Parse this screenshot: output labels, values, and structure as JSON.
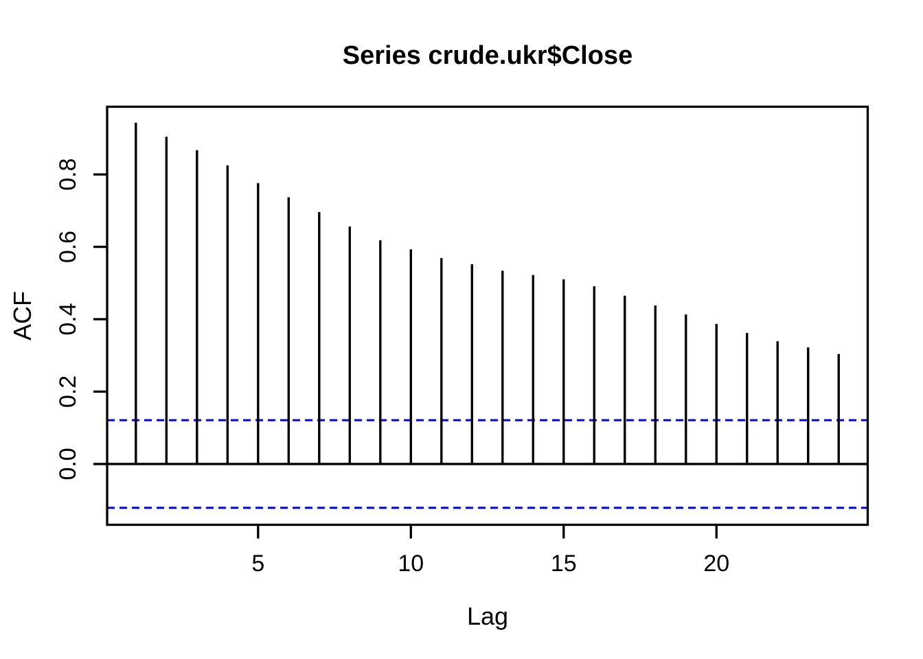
{
  "chart_data": {
    "type": "bar",
    "chart_kind": "acf-correlogram",
    "title": "Series crude.ukr$Close",
    "xlabel": "Lag",
    "ylabel": "ACF",
    "x": [
      1,
      2,
      3,
      4,
      5,
      6,
      7,
      8,
      9,
      10,
      11,
      12,
      13,
      14,
      15,
      16,
      17,
      18,
      19,
      20,
      21,
      22,
      23,
      24
    ],
    "values": [
      0.943,
      0.904,
      0.867,
      0.825,
      0.776,
      0.737,
      0.696,
      0.656,
      0.618,
      0.593,
      0.569,
      0.552,
      0.534,
      0.522,
      0.51,
      0.491,
      0.465,
      0.438,
      0.413,
      0.387,
      0.362,
      0.339,
      0.322,
      0.304
    ],
    "zero_line": 0,
    "confidence_bounds": [
      0.121,
      -0.121
    ],
    "confidence_line_style": "dashed",
    "x_ticks": [
      5,
      10,
      15,
      20
    ],
    "x_tick_labels": [
      "5",
      "10",
      "15",
      "20"
    ],
    "y_ticks": [
      0.0,
      0.2,
      0.4,
      0.6,
      0.8
    ],
    "y_tick_labels": [
      "0.0",
      "0.2",
      "0.4",
      "0.6",
      "0.8"
    ],
    "xlim": [
      0.06,
      24.95
    ],
    "ylim": [
      -0.168,
      0.987
    ],
    "grid": false,
    "legend": null,
    "colors": {
      "bars": "#000000",
      "confidence": "#0000FF",
      "frame": "#000000",
      "text": "#000000",
      "background": "#FFFFFF"
    }
  }
}
